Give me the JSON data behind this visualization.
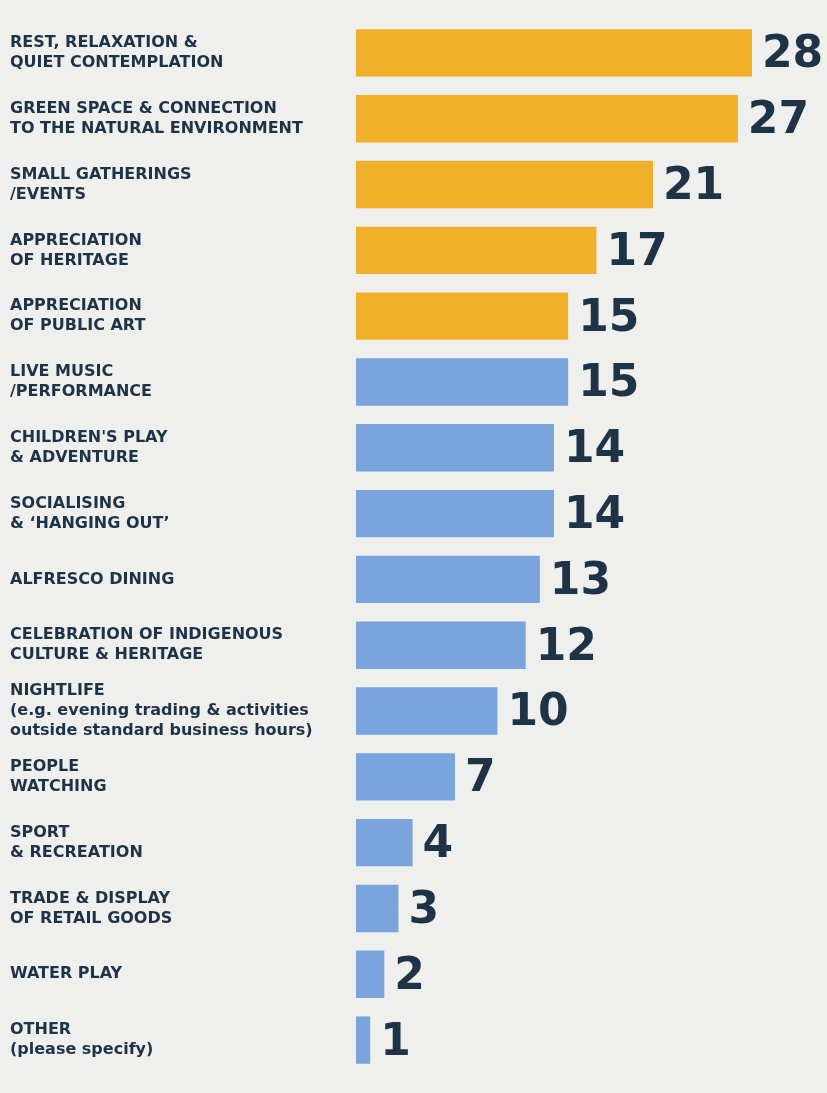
{
  "chart_data": {
    "type": "bar",
    "orientation": "horizontal",
    "categories": [
      "REST, RELAXATION &\nQUIET CONTEMPLATION",
      "GREEN SPACE & CONNECTION\nTO THE NATURAL ENVIRONMENT",
      "SMALL GATHERINGS\n/EVENTS",
      "APPRECIATION\nOF HERITAGE",
      "APPRECIATION\nOF PUBLIC ART",
      "LIVE MUSIC\n/PERFORMANCE",
      "CHILDREN'S PLAY\n& ADVENTURE",
      "SOCIALISING\n& ‘HANGING OUT’",
      "ALFRESCO DINING",
      "CELEBRATION OF INDIGENOUS\nCULTURE & HERITAGE",
      "NIGHTLIFE\n(e.g. evening trading & activities\noutside standard business hours)",
      "PEOPLE\nWATCHING",
      "SPORT\n& RECREATION",
      "TRADE & DISPLAY\nOF RETAIL GOODS",
      "WATER PLAY",
      "OTHER\n(please specify)"
    ],
    "values": [
      28,
      27,
      21,
      17,
      15,
      15,
      14,
      14,
      13,
      12,
      10,
      7,
      4,
      3,
      2,
      1
    ],
    "colors": [
      "#f0b02a",
      "#f0b02a",
      "#f0b02a",
      "#f0b02a",
      "#f0b02a",
      "#7aa5dc",
      "#7aa5dc",
      "#7aa5dc",
      "#7aa5dc",
      "#7aa5dc",
      "#7aa5dc",
      "#7aa5dc",
      "#7aa5dc",
      "#7aa5dc",
      "#7aa5dc",
      "#7aa5dc"
    ],
    "tick_labels": "y",
    "legend": false,
    "data_labels": true
  }
}
